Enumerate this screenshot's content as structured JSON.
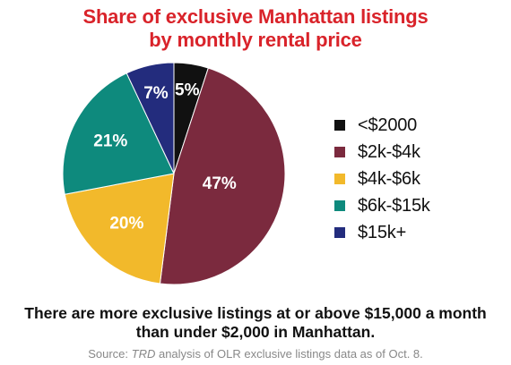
{
  "chart_data": {
    "type": "pie",
    "title": [
      "Share of exclusive Manhattan listings",
      "by monthly rental price"
    ],
    "categories": [
      "<$2000",
      "$2k-$4k",
      "$4k-$6k",
      "$6k-$15k",
      "$15k+"
    ],
    "values": [
      5,
      47,
      20,
      21,
      7
    ],
    "value_labels": [
      "5%",
      "47%",
      "20%",
      "21%",
      "7%"
    ],
    "colors": [
      "#111111",
      "#7b2a3e",
      "#f2b92b",
      "#0e8a7d",
      "#232c7d"
    ],
    "legend_position": "right",
    "start": "top",
    "direction": "clockwise"
  },
  "note": [
    "There are more exclusive listings at or above $15,000 a month",
    "than under $2,000 in Manhattan."
  ],
  "source": {
    "prefix": "Source: ",
    "publication": "TRD",
    "suffix": " analysis of OLR exclusive listings data as of Oct. 8."
  }
}
